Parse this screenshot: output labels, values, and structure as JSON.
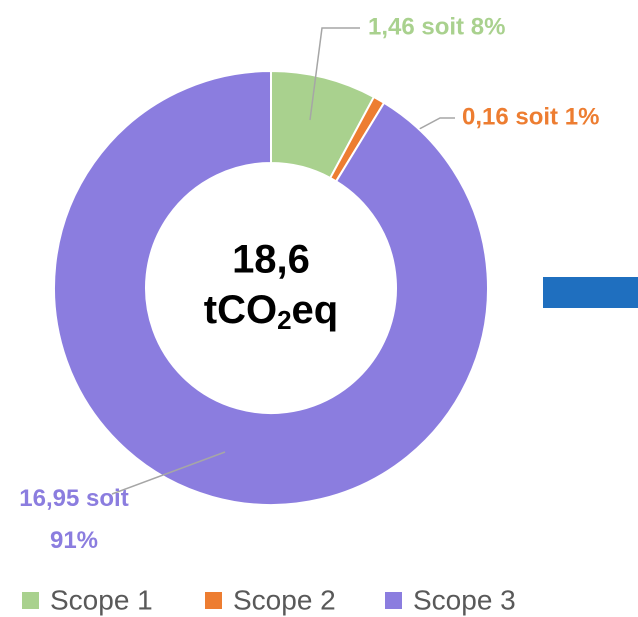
{
  "chart_data": {
    "type": "donut",
    "categories": [
      "Scope 1",
      "Scope 2",
      "Scope 3"
    ],
    "values": [
      1.46,
      0.16,
      16.95
    ],
    "value_labels": [
      "1,46 soit 8%",
      "0,16 soit 1%",
      "16,95 soit 91%"
    ],
    "colors": [
      "#a9d18e",
      "#ed7d31",
      "#8b7ddf"
    ],
    "center_label": "18,6",
    "center_unit": [
      "tCO",
      "2",
      "eq"
    ],
    "legend": "bottom"
  }
}
